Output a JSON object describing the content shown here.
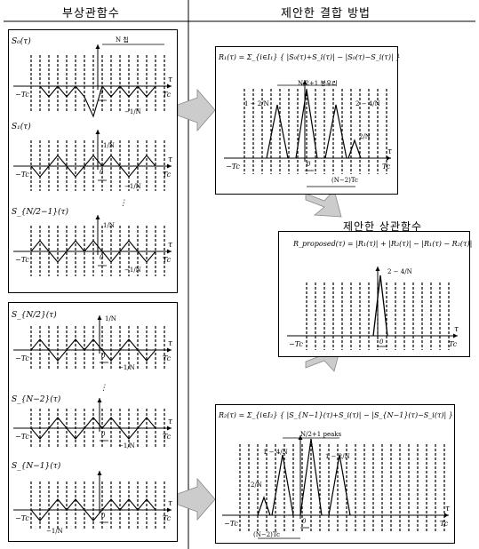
{
  "headers": {
    "left": "부상관함수",
    "right": "제안한 결합 방법"
  },
  "left_top": {
    "s0": "S₀(τ)",
    "s1": "S₁(τ)",
    "sn": "S_{N/2−1}(τ)",
    "n_chips": "N 칩 ",
    "neg_one_over_n": "−1/N",
    "one_over_n": "1/N",
    "neg_tc": "−Tc",
    "tc": "Tc",
    "zero": "0",
    "tau": "τ",
    "dots": "⋮"
  },
  "left_bottom": {
    "s_a": "S_{N/2}(τ)",
    "s_b": "S_{N−2}(τ)",
    "s_c": "S_{N−1}(τ)",
    "one_over_n": "1/N",
    "neg_one_over_n": "−1/N",
    "neg_tc": "−Tc",
    "tc": "Tc",
    "zero": "0",
    "tau": "τ",
    "dots": "⋮"
  },
  "r1": {
    "formula": "R₁(τ) = Σ_{i∈I₁} { |S₀(τ)+S_i(τ)| − |S₀(τ)−S_i(τ)| }",
    "peaks": "N/2+1 봉우리",
    "val1": "1 − 2/N",
    "val2": "2 − 4/N",
    "val3": "2/N",
    "offset": "(N−2)Tc",
    "neg_tc": "−Tc",
    "tc": "Tc",
    "zero": "0",
    "tau": "τ"
  },
  "proposed": {
    "title": "제안한 상관함수",
    "formula": "R_proposed(τ) = |R₁(τ)| + |R₂(τ)| − |R₁(τ) − R₂(τ)|",
    "peak": "2 − 4/N",
    "neg_tc": "−Tc",
    "tc": "Tc",
    "zero": "0",
    "tau": "τ"
  },
  "r2": {
    "formula": "R₂(τ) = Σ_{i∈I₂} { |S_{N−1}(τ)+S_i(τ)| − |S_{N−1}(τ)−S_i(τ)| }",
    "peaks": "N/2+1 peaks",
    "val1": "1 − 4/N",
    "val2": "1 − 2/N",
    "val3": "2/N",
    "offset": "(N−2)Tc",
    "neg_tc": "−Tc",
    "tc": "Tc",
    "zero": "0",
    "tau": "τ"
  }
}
